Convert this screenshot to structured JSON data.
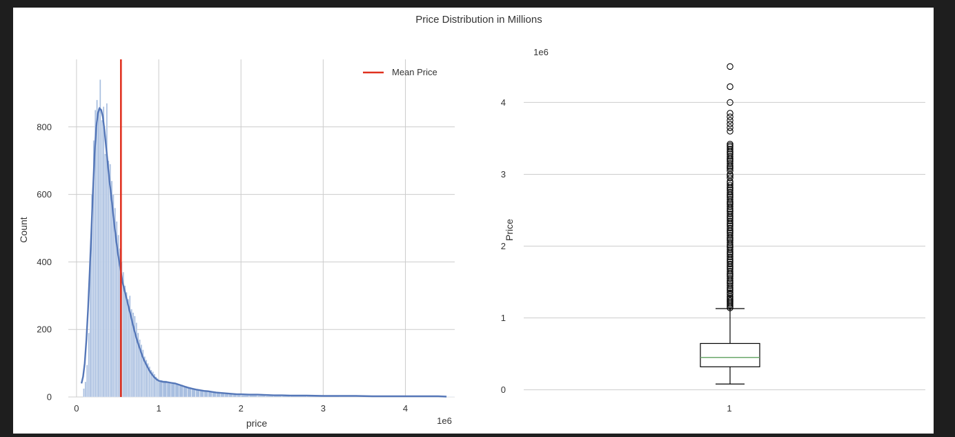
{
  "figure": {
    "suptitle": "Price Distribution in Millions",
    "background": "#ffffff",
    "page_background": "#1e1e1e"
  },
  "chart_data": [
    {
      "type": "bar",
      "subtype": "histogram_with_kde",
      "xlabel": "price",
      "ylabel": "Count",
      "x_offset_label": "1e6",
      "xlim": [
        -100000,
        4600000
      ],
      "ylim": [
        0,
        1000
      ],
      "x_ticks": [
        0,
        1,
        2,
        3,
        4
      ],
      "y_ticks": [
        0,
        200,
        400,
        600,
        800
      ],
      "grid": true,
      "legend": {
        "position": "top-right",
        "entries": [
          "Mean Price"
        ]
      },
      "mean_price": 540000,
      "bar_color": "#a9bfe0",
      "kde_color": "#5577b8",
      "mean_color": "#e0301e",
      "bins": {
        "x": [
          80000,
          100000,
          120000,
          140000,
          160000,
          180000,
          200000,
          220000,
          240000,
          260000,
          280000,
          300000,
          320000,
          340000,
          360000,
          380000,
          400000,
          420000,
          440000,
          460000,
          480000,
          500000,
          520000,
          540000,
          560000,
          580000,
          600000,
          620000,
          640000,
          660000,
          680000,
          700000,
          720000,
          740000,
          760000,
          780000,
          800000,
          820000,
          840000,
          860000,
          880000,
          900000,
          920000,
          940000,
          960000,
          980000,
          1000000,
          1050000,
          1100000,
          1150000,
          1200000,
          1250000,
          1300000,
          1350000,
          1400000,
          1450000,
          1500000,
          1550000,
          1600000,
          1650000,
          1700000,
          1750000,
          1800000,
          1850000,
          1900000,
          1950000,
          2000000,
          2100000,
          2200000,
          2300000,
          2400000,
          2500000,
          2600000,
          2800000,
          3000000,
          3200000,
          3400000,
          3600000,
          3800000,
          4000000,
          4200000,
          4400000
        ],
        "values": [
          25,
          45,
          95,
          190,
          430,
          600,
          760,
          850,
          880,
          855,
          940,
          820,
          860,
          720,
          870,
          700,
          690,
          640,
          600,
          560,
          520,
          480,
          440,
          400,
          370,
          330,
          310,
          290,
          300,
          260,
          250,
          240,
          220,
          190,
          170,
          155,
          140,
          120,
          110,
          100,
          90,
          80,
          75,
          68,
          60,
          55,
          50,
          48,
          42,
          40,
          38,
          36,
          32,
          28,
          25,
          22,
          20,
          18,
          16,
          14,
          12,
          10,
          9,
          8,
          7,
          6,
          5,
          5,
          4,
          3,
          3,
          3,
          2,
          2,
          2,
          1,
          1,
          1,
          1,
          1,
          1,
          1
        ]
      },
      "kde": {
        "x": [
          60000,
          80000,
          100000,
          120000,
          140000,
          160000,
          180000,
          200000,
          220000,
          240000,
          260000,
          280000,
          300000,
          320000,
          340000,
          360000,
          380000,
          400000,
          420000,
          440000,
          460000,
          480000,
          500000,
          520000,
          540000,
          560000,
          580000,
          600000,
          620000,
          640000,
          660000,
          680000,
          700000,
          720000,
          740000,
          760000,
          780000,
          800000,
          820000,
          840000,
          860000,
          880000,
          900000,
          920000,
          940000,
          960000,
          980000,
          1000000,
          1050000,
          1100000,
          1150000,
          1200000,
          1250000,
          1300000,
          1350000,
          1400000,
          1450000,
          1500000,
          1550000,
          1600000,
          1650000,
          1700000,
          1750000,
          1800000,
          1850000,
          1900000,
          1950000,
          2000000,
          2100000,
          2200000,
          2300000,
          2400000,
          2500000,
          2600000,
          2800000,
          3000000,
          3200000,
          3400000,
          3600000,
          3800000,
          4000000,
          4200000,
          4400000,
          4500000
        ],
        "y": [
          40,
          60,
          100,
          170,
          260,
          370,
          490,
          610,
          720,
          800,
          840,
          855,
          850,
          830,
          790,
          740,
          690,
          640,
          600,
          555,
          510,
          470,
          430,
          400,
          370,
          340,
          320,
          300,
          280,
          260,
          240,
          220,
          200,
          182,
          165,
          150,
          136,
          122,
          110,
          100,
          90,
          81,
          73,
          66,
          60,
          55,
          51,
          48,
          45,
          44,
          42,
          40,
          36,
          32,
          28,
          25,
          22,
          20,
          18,
          17,
          15,
          13,
          12,
          11,
          10,
          9,
          8,
          8,
          7,
          7,
          6,
          5,
          5,
          4,
          4,
          3,
          3,
          3,
          2,
          2,
          2,
          2,
          2,
          1
        ]
      }
    },
    {
      "type": "box",
      "ylabel": "Price",
      "y_offset_label": "1e6",
      "categories": [
        "1"
      ],
      "ylim": [
        -100000,
        4600000
      ],
      "y_ticks": [
        0,
        1,
        2,
        3,
        4
      ],
      "grid": true,
      "box": {
        "whisker_low": 80000,
        "q1": 320000,
        "median": 450000,
        "q3": 645000,
        "whisker_high": 1130000
      },
      "median_color": "#6aa86a",
      "outliers": [
        4500000,
        4220000,
        4000000,
        3850000,
        3800000,
        3750000,
        3700000,
        3650000,
        3600000,
        3420000,
        3400000,
        3380000,
        3350000,
        3320000,
        3300000,
        3280000,
        3250000,
        3220000,
        3200000,
        3180000,
        3150000,
        3120000,
        3100000,
        3080000,
        3050000,
        3000000,
        2980000,
        2950000,
        2900000,
        2880000,
        2850000,
        2820000,
        2800000,
        2780000,
        2750000,
        2720000,
        2700000,
        2680000,
        2650000,
        2620000,
        2600000,
        2580000,
        2550000,
        2520000,
        2500000,
        2480000,
        2450000,
        2420000,
        2400000,
        2380000,
        2350000,
        2320000,
        2300000,
        2280000,
        2250000,
        2220000,
        2200000,
        2180000,
        2150000,
        2120000,
        2100000,
        2080000,
        2050000,
        2020000,
        2000000,
        1980000,
        1950000,
        1920000,
        1900000,
        1880000,
        1850000,
        1820000,
        1800000,
        1780000,
        1750000,
        1720000,
        1700000,
        1680000,
        1650000,
        1620000,
        1600000,
        1580000,
        1550000,
        1520000,
        1500000,
        1480000,
        1450000,
        1420000,
        1400000,
        1380000,
        1350000,
        1330000,
        1300000,
        1280000,
        1260000,
        1240000,
        1220000,
        1200000,
        1180000,
        1160000,
        1140000
      ]
    }
  ]
}
